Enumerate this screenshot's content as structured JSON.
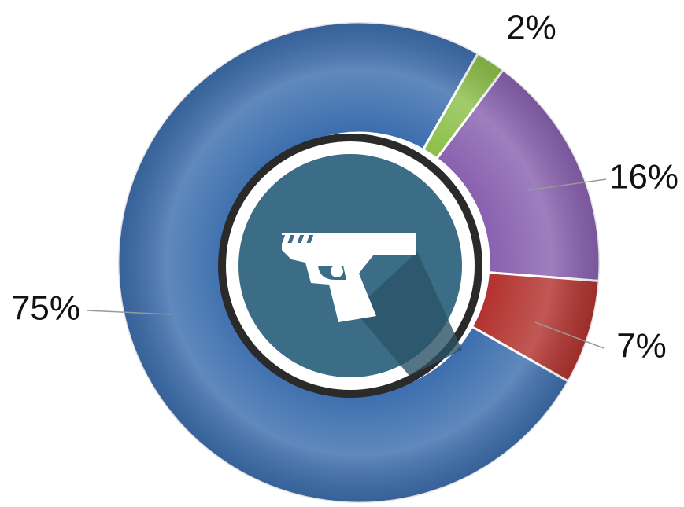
{
  "chart_data": {
    "type": "donut",
    "values": [
      2,
      16,
      7,
      75
    ],
    "value_labels": [
      "2%",
      "16%",
      "7%",
      "75%"
    ],
    "colors": [
      "#8dc04a",
      "#8a62b0",
      "#b3332f",
      "#3d6fae"
    ]
  }
}
